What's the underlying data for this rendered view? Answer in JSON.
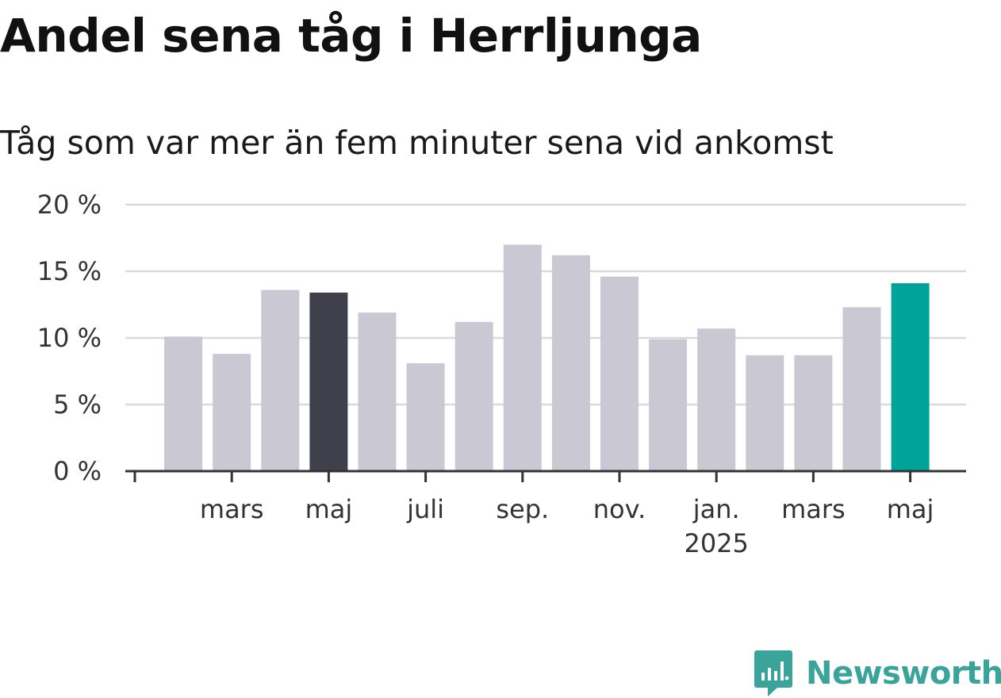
{
  "chart_data": {
    "type": "bar",
    "title": "Andel sena tåg i Herrljunga",
    "subtitle": "Tåg som var mer än fem minuter sena vid ankomst",
    "xlabel": "",
    "ylabel": "",
    "ylim": [
      0,
      20
    ],
    "y_ticks": [
      0,
      5,
      10,
      15,
      20
    ],
    "y_tick_labels": [
      "0 %",
      "5 %",
      "10 %",
      "15 %",
      "20 %"
    ],
    "categories": [
      "2024-01",
      "2024-02",
      "2024-03",
      "2024-04",
      "2024-05",
      "2024-06",
      "2024-07",
      "2024-08",
      "2024-09",
      "2024-10",
      "2024-11",
      "2024-12",
      "2025-01",
      "2025-02",
      "2025-03",
      "2025-04",
      "2025-05"
    ],
    "x_tick_labels": [
      {
        "label": "",
        "year": "",
        "position": 0
      },
      {
        "label": "mars",
        "year": "",
        "position": 2
      },
      {
        "label": "maj",
        "year": "",
        "position": 4
      },
      {
        "label": "juli",
        "year": "",
        "position": 6
      },
      {
        "label": "sep.",
        "year": "",
        "position": 8
      },
      {
        "label": "nov.",
        "year": "",
        "position": 10
      },
      {
        "label": "jan.",
        "year": "2025",
        "position": 12
      },
      {
        "label": "mars",
        "year": "",
        "position": 14
      },
      {
        "label": "maj",
        "year": "",
        "position": 16
      }
    ],
    "series": [
      {
        "values": [
          null,
          10.1,
          8.8,
          13.6,
          13.4,
          11.9,
          8.1,
          11.2,
          17.0,
          16.2,
          14.6,
          9.9,
          10.7,
          8.7,
          8.7,
          12.3,
          14.1
        ]
      }
    ],
    "highlight": [
      {
        "category": "2024-05",
        "color": "#403f4c"
      },
      {
        "category": "2025-05",
        "color": "#00a39a"
      }
    ],
    "colors": {
      "bar_default": "#c9c8d3",
      "bar_highlight_previous": "#403f4c",
      "bar_highlight_latest": "#00a39a",
      "grid": "#dadada",
      "axis": "#333333"
    },
    "grid": true,
    "legend": "none"
  },
  "brand": {
    "name": "Newsworthy",
    "logo_icon": "newsworthy-chart-bubble-icon",
    "color": "#3aa39a"
  }
}
